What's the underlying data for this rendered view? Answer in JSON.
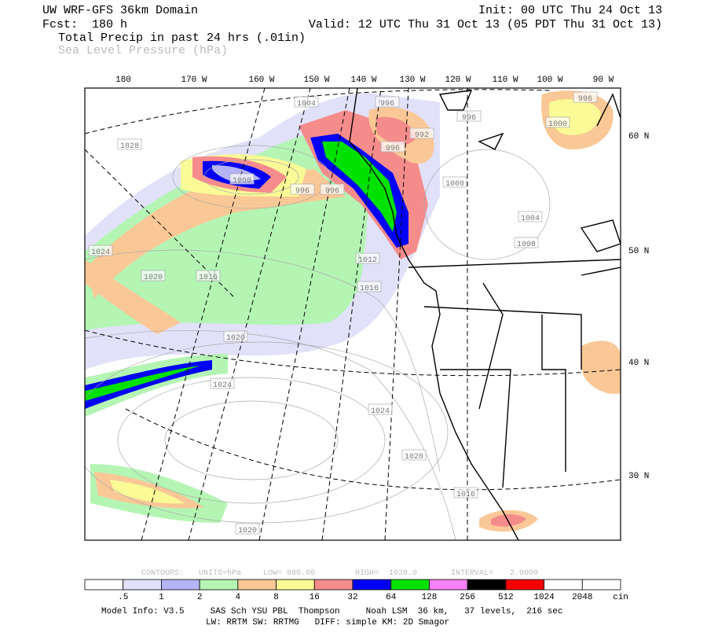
{
  "header": {
    "title": "UW WRF-GFS 36km Domain",
    "init": "Init: 00 UTC Thu 24 Oct 13",
    "forecast": "Fcst:  180 h",
    "valid": "Valid: 12 UTC Thu 31 Oct 13 (05 PDT Thu 31 Oct 13)",
    "field": "Total Precip in past 24 hrs (.01in)",
    "overlay": "Sea Level Pressure (hPa)"
  },
  "map": {
    "longitude_labels": [
      "180",
      "170 W",
      "160 W",
      "150 W",
      "140 W",
      "130 W",
      "120 W",
      "110 W",
      "100 W",
      "90 W"
    ],
    "latitude_labels": [
      "60 N",
      "50 N",
      "40 N",
      "30 N"
    ],
    "contour_labels": [
      "1004",
      "996",
      "996",
      "992",
      "996",
      "1028",
      "1000",
      "996",
      "996",
      "1000",
      "1004",
      "1008",
      "1024",
      "1012",
      "1016",
      "1020",
      "1016",
      "1020",
      "1024",
      "1024",
      "1020",
      "1016",
      "1020",
      "996",
      "1000"
    ]
  },
  "contours": [
    "CONTOURS:",
    "UNITS=hPa",
    "LOW=",
    "986.00",
    "HIGH=",
    "1028.0",
    "INTERVAL=",
    "2.0000"
  ],
  "colorbar": {
    "labels": [
      ".5",
      "1",
      "2",
      "4",
      "8",
      "16",
      "32",
      "64",
      "128",
      "256",
      "512",
      "1024",
      "2048",
      "cin"
    ],
    "colors": [
      "#ffffff",
      "#e1e1fa",
      "#b4b4f5",
      "#b4f5b4",
      "#fac896",
      "#fafa96",
      "#f58c8c",
      "#0000f5",
      "#00e100",
      "#f582f5",
      "#000000",
      "#f50000",
      "#ffffff",
      "#ffffff"
    ]
  },
  "footer": [
    "Model Info: V3.5     SAS Sch YSU PBL  Thompson     Noah LSM  36 km,   37 levels,  216 sec",
    "LW: RRTM SW: RRTMG   DIFF: simple KM: 2D Smagor"
  ]
}
